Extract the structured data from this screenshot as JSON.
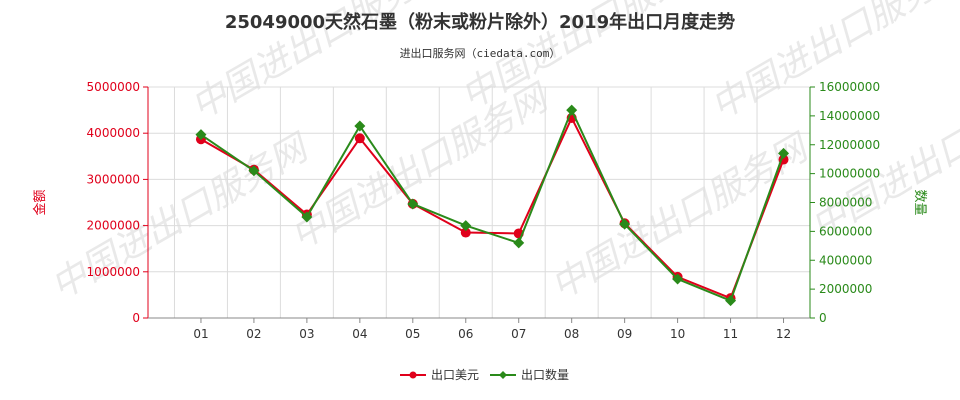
{
  "page": {
    "title": "25049000天然石墨（粉末或粉片除外）2019年出口月度走势",
    "subtitle": "进出口服务网（ciedata.com）",
    "watermark": "中国进出口服务网"
  },
  "chart_data": {
    "type": "line",
    "title": "25049000天然石墨（粉末或粉片除外）2019年出口月度走势",
    "subtitle": "进出口服务网（ciedata.com）",
    "categories": [
      "01",
      "02",
      "03",
      "04",
      "05",
      "06",
      "07",
      "08",
      "09",
      "10",
      "11",
      "12"
    ],
    "y_left": {
      "label": "金额",
      "min": 0,
      "max": 5000000,
      "ticks": [
        0,
        1000000,
        2000000,
        3000000,
        4000000,
        5000000
      ],
      "tick_labels": [
        "0",
        "1000000",
        "2000000",
        "3000000",
        "4000000",
        "5000000"
      ],
      "color": "#e0001b"
    },
    "y_right": {
      "label": "数量",
      "min": 0,
      "max": 16000000,
      "ticks": [
        0,
        2000000,
        4000000,
        6000000,
        8000000,
        10000000,
        12000000,
        14000000,
        16000000
      ],
      "tick_labels": [
        "0",
        "2000000",
        "4000000",
        "6000000",
        "8000000",
        "10000000",
        "12000000",
        "14000000",
        "16000000"
      ],
      "color": "#2a8a1a"
    },
    "grid": true,
    "legend_position": "bottom-center",
    "series": [
      {
        "name": "出口美元",
        "axis": "left",
        "color": "#e0001b",
        "marker": "circle",
        "values": [
          3870000,
          3210000,
          2240000,
          3890000,
          2470000,
          1850000,
          1830000,
          4330000,
          2050000,
          890000,
          430000,
          3430000
        ]
      },
      {
        "name": "出口数量",
        "axis": "right",
        "color": "#2a8a1a",
        "marker": "diamond",
        "values": [
          12700000,
          10200000,
          7000000,
          13300000,
          7900000,
          6400000,
          5200000,
          14400000,
          6500000,
          2700000,
          1200000,
          11400000
        ]
      }
    ]
  }
}
